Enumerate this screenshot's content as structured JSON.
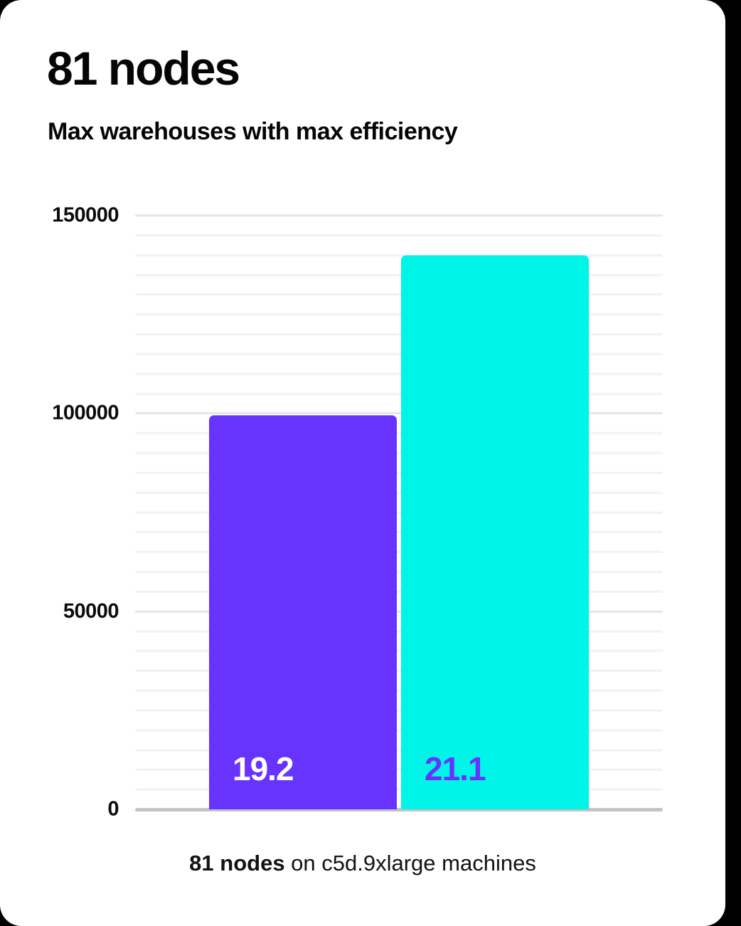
{
  "card": {
    "title": "81 nodes",
    "subtitle": "Max warehouses with max efficiency"
  },
  "caption": {
    "bold_part": "81 nodes",
    "regular_part": " on c5d.9xlarge machines"
  },
  "chart_data": {
    "type": "bar",
    "title": "81 nodes",
    "subtitle": "Max warehouses with max efficiency",
    "bars": [
      {
        "value": 99500,
        "label": "19.2",
        "color": "#6633ff",
        "label_color": "#ffffff"
      },
      {
        "value": 140000,
        "label": "21.1",
        "color": "#00f5e9",
        "label_color": "#6633ff"
      }
    ],
    "xlabel": "",
    "ylabel": "",
    "ylim": [
      0,
      150000
    ],
    "yticks": [
      0,
      50000,
      100000,
      150000
    ],
    "ytick_labels": [
      "0",
      "50000",
      "100000",
      "150000"
    ],
    "minor_gridline_step": 5000,
    "grid": true,
    "legend_position": "none",
    "caption": "81 nodes on c5d.9xlarge machines"
  },
  "colors": {
    "page_background": "#000000",
    "card_background": "#ffffff",
    "axis_line": "#c4c4c4",
    "major_gridline": "#e6e6e6",
    "minor_gridline": "#f2f2f2",
    "text": "#0b0b0b",
    "accent_purple": "#6633ff",
    "accent_cyan": "#00f5e9"
  }
}
